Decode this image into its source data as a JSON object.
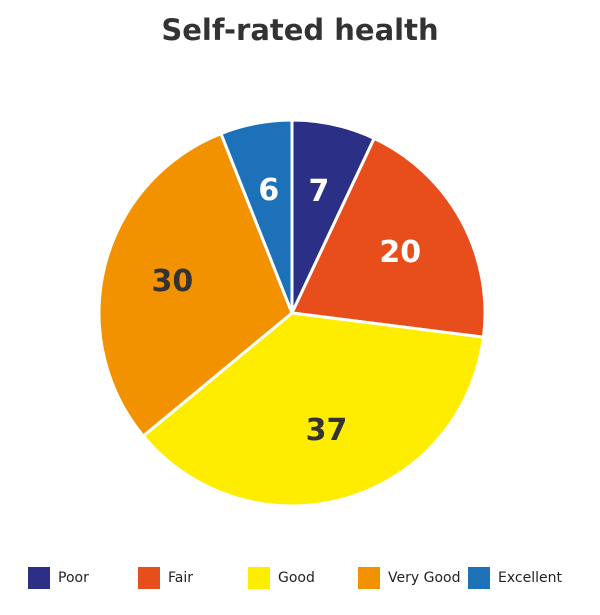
{
  "chart_data": {
    "type": "pie",
    "title": "Self-rated health",
    "categories": [
      "Poor",
      "Fair",
      "Good",
      "Very Good",
      "Excellent"
    ],
    "values": [
      7,
      20,
      37,
      30,
      6
    ],
    "colors": [
      "#2b2f86",
      "#e84e1b",
      "#ffed00",
      "#f39200",
      "#1d71b8"
    ],
    "legend": "bottom"
  }
}
